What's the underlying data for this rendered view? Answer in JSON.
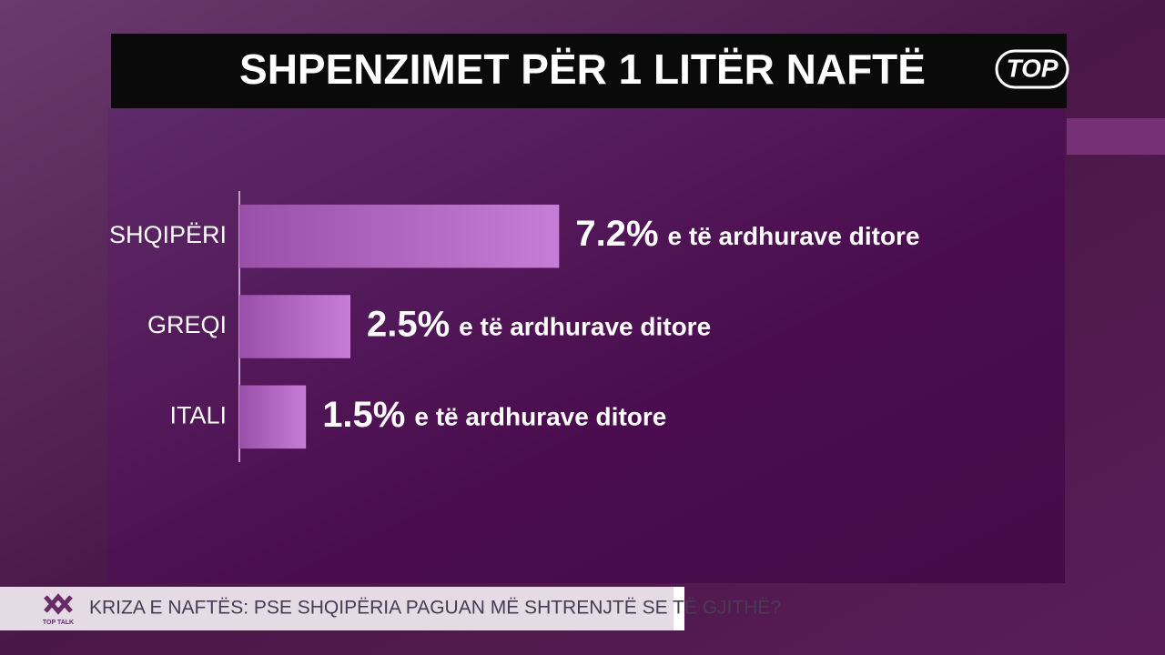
{
  "chart_data": {
    "type": "bar",
    "orientation": "horizontal",
    "title": "SHPENZIMET PËR 1 LITËR NAFTË",
    "categories": [
      "SHQIPËRI",
      "GREQI",
      "ITALI"
    ],
    "values": [
      7.2,
      2.5,
      1.5
    ],
    "value_labels": [
      "7.2%",
      "2.5%",
      "1.5%"
    ],
    "value_label_notes": [
      "e të ardhurave ditore",
      "e të ardhurave ditore",
      "e të ardhurave ditore"
    ],
    "color": "#c77dd6",
    "xlim": [
      0,
      7.5
    ]
  },
  "logo": "TOP",
  "ticker": {
    "show": "TOP TALK",
    "headline": "KRIZA E NAFTËS: PSE SHQIPËRIA PAGUAN MË SHTRENJTË SE TË GJITHË?"
  }
}
